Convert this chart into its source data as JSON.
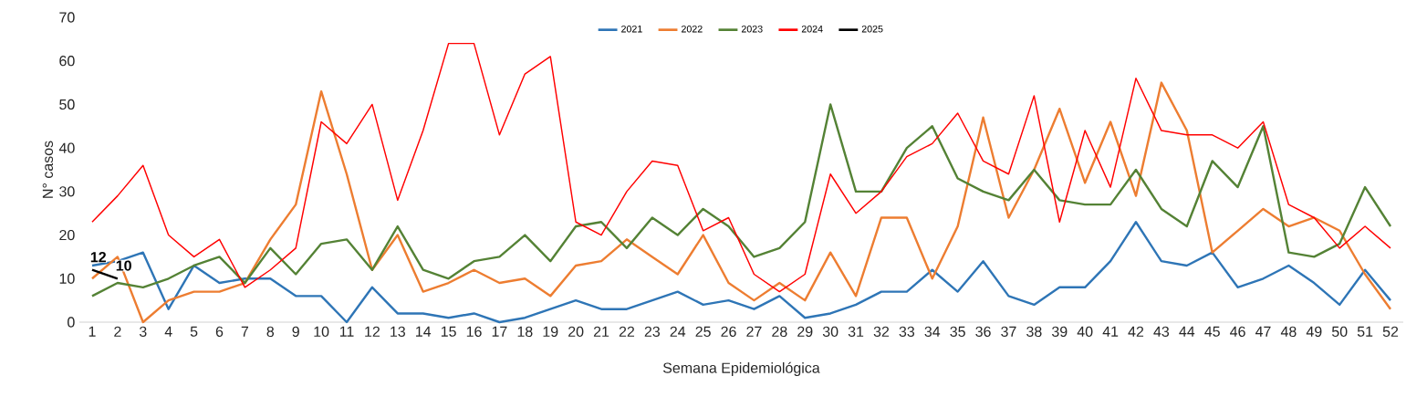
{
  "chart_data": {
    "type": "line",
    "xlabel": "Semana Epidemiológica",
    "ylabel": "N° casos",
    "categories": [
      "1",
      "2",
      "3",
      "4",
      "5",
      "6",
      "7",
      "8",
      "9",
      "10",
      "11",
      "12",
      "13",
      "14",
      "15",
      "16",
      "17",
      "18",
      "19",
      "20",
      "21",
      "22",
      "23",
      "24",
      "25",
      "26",
      "27",
      "28",
      "29",
      "30",
      "31",
      "32",
      "33",
      "34",
      "35",
      "36",
      "37",
      "38",
      "39",
      "40",
      "41",
      "42",
      "43",
      "44",
      "45",
      "46",
      "47",
      "48",
      "49",
      "50",
      "51",
      "52"
    ],
    "series": [
      {
        "name": "2021",
        "color": "#2e75b6",
        "values": [
          13,
          14,
          16,
          3,
          13,
          9,
          10,
          10,
          6,
          6,
          0,
          8,
          2,
          2,
          1,
          2,
          0,
          1,
          3,
          5,
          3,
          3,
          5,
          7,
          4,
          5,
          3,
          6,
          1,
          2,
          4,
          7,
          7,
          12,
          7,
          14,
          6,
          4,
          8,
          8,
          14,
          23,
          14,
          13,
          16,
          8,
          10,
          13,
          9,
          4,
          12,
          5
        ]
      },
      {
        "name": "2022",
        "color": "#ed7d31",
        "values": [
          10,
          15,
          0,
          5,
          7,
          7,
          9,
          19,
          27,
          53,
          34,
          12,
          20,
          7,
          9,
          12,
          9,
          10,
          6,
          13,
          14,
          19,
          15,
          11,
          20,
          9,
          5,
          9,
          5,
          16,
          6,
          24,
          24,
          10,
          22,
          47,
          24,
          35,
          49,
          32,
          46,
          29,
          55,
          44,
          16,
          21,
          26,
          22,
          24,
          21,
          11,
          3
        ]
      },
      {
        "name": "2023",
        "color": "#548235",
        "values": [
          6,
          9,
          8,
          10,
          13,
          15,
          9,
          17,
          11,
          18,
          19,
          12,
          22,
          12,
          10,
          14,
          15,
          20,
          14,
          22,
          23,
          17,
          24,
          20,
          26,
          22,
          15,
          17,
          23,
          50,
          30,
          30,
          40,
          45,
          33,
          30,
          28,
          35,
          28,
          27,
          27,
          35,
          26,
          22,
          37,
          31,
          45,
          16,
          15,
          18,
          31,
          22
        ]
      },
      {
        "name": "2024",
        "color": "#ff0000",
        "values": [
          23,
          29,
          36,
          20,
          15,
          19,
          8,
          12,
          17,
          46,
          41,
          50,
          28,
          44,
          64,
          64,
          43,
          57,
          61,
          23,
          20,
          30,
          37,
          36,
          21,
          24,
          11,
          7,
          11,
          34,
          25,
          30,
          38,
          41,
          48,
          37,
          34,
          52,
          23,
          44,
          31,
          56,
          44,
          43,
          43,
          40,
          46,
          27,
          24,
          17,
          22,
          17
        ]
      },
      {
        "name": "2025",
        "color": "#000000",
        "values": [
          12,
          10,
          null,
          null,
          null,
          null,
          null,
          null,
          null,
          null,
          null,
          null,
          null,
          null,
          null,
          null,
          null,
          null,
          null,
          null,
          null,
          null,
          null,
          null,
          null,
          null,
          null,
          null,
          null,
          null,
          null,
          null,
          null,
          null,
          null,
          null,
          null,
          null,
          null,
          null,
          null,
          null,
          null,
          null,
          null,
          null,
          null,
          null,
          null,
          null,
          null,
          null
        ],
        "value_labels": [
          "12",
          "10",
          null,
          null,
          null,
          null,
          null,
          null,
          null,
          null,
          null,
          null,
          null,
          null,
          null,
          null,
          null,
          null,
          null,
          null,
          null,
          null,
          null,
          null,
          null,
          null,
          null,
          null,
          null,
          null,
          null,
          null,
          null,
          null,
          null,
          null,
          null,
          null,
          null,
          null,
          null,
          null,
          null,
          null,
          null,
          null,
          null,
          null,
          null,
          null,
          null,
          null
        ]
      }
    ],
    "ylim": [
      0,
      70
    ],
    "yticks": [
      0,
      10,
      20,
      30,
      40,
      50,
      60,
      70
    ],
    "legend": "top",
    "marker": "none",
    "line_style": "solid"
  }
}
